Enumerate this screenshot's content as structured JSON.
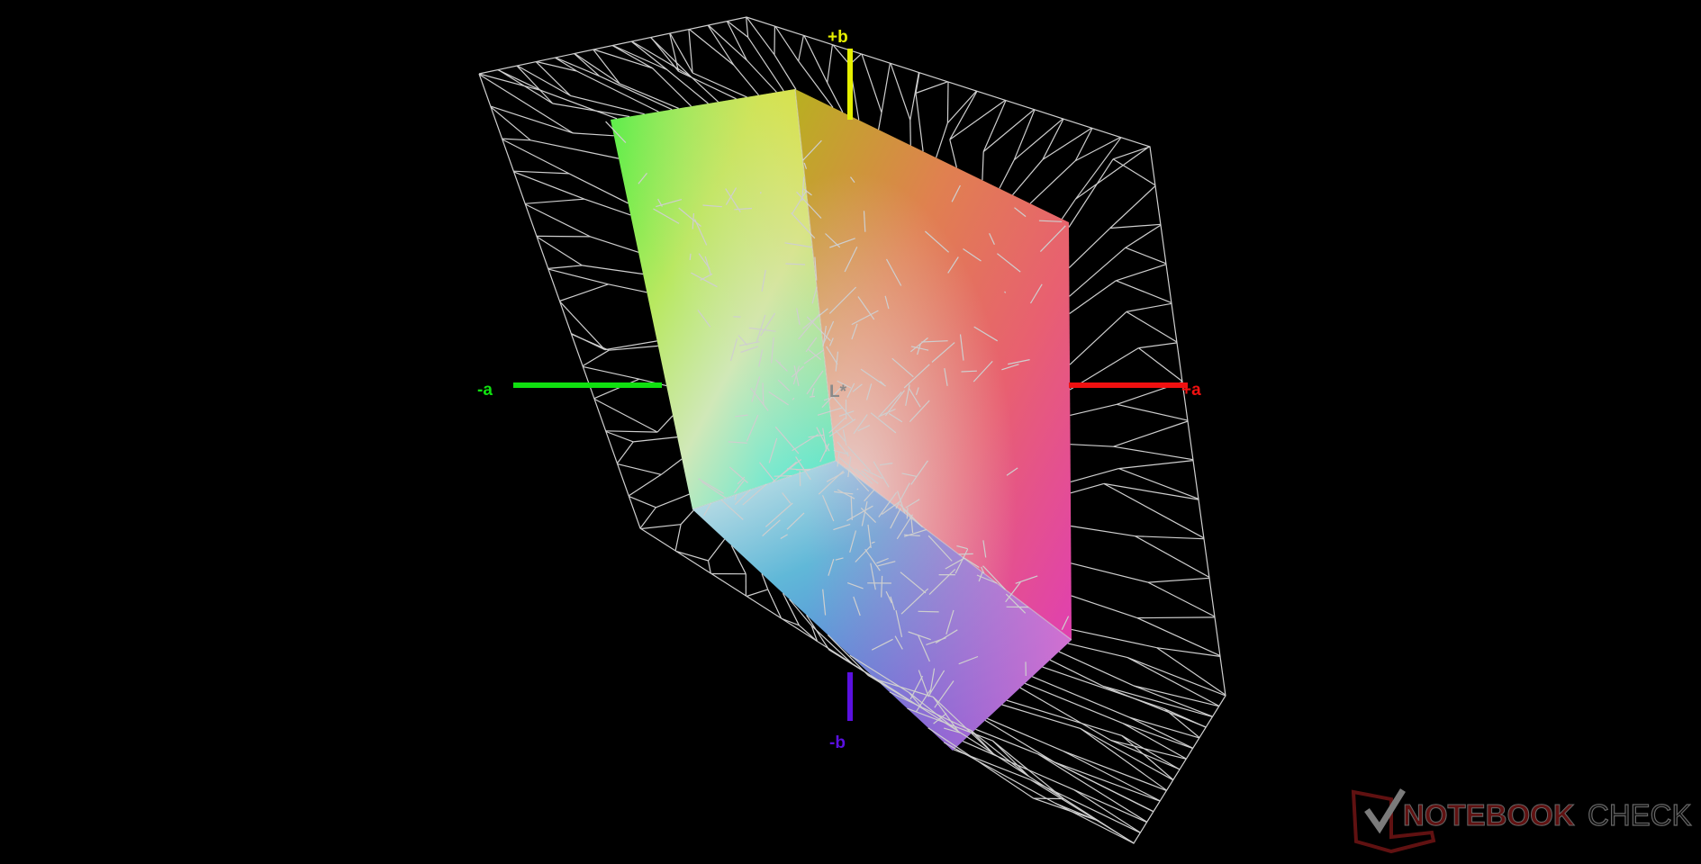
{
  "diagram": {
    "axes": {
      "plus_b": {
        "label": "+b",
        "color": "#e6f000"
      },
      "minus_b": {
        "label": "-b",
        "color": "#5a10e0"
      },
      "minus_a": {
        "label": "-a",
        "color": "#10e010"
      },
      "plus_a": {
        "label": "+a",
        "color": "#f01010"
      },
      "lightness": {
        "label": "L*",
        "color": "#8a8a8a"
      }
    },
    "wireframe_color": "#cfcfcf"
  },
  "watermark": {
    "text_bold": "NOTEBOOK",
    "text_light": "CHECK"
  }
}
